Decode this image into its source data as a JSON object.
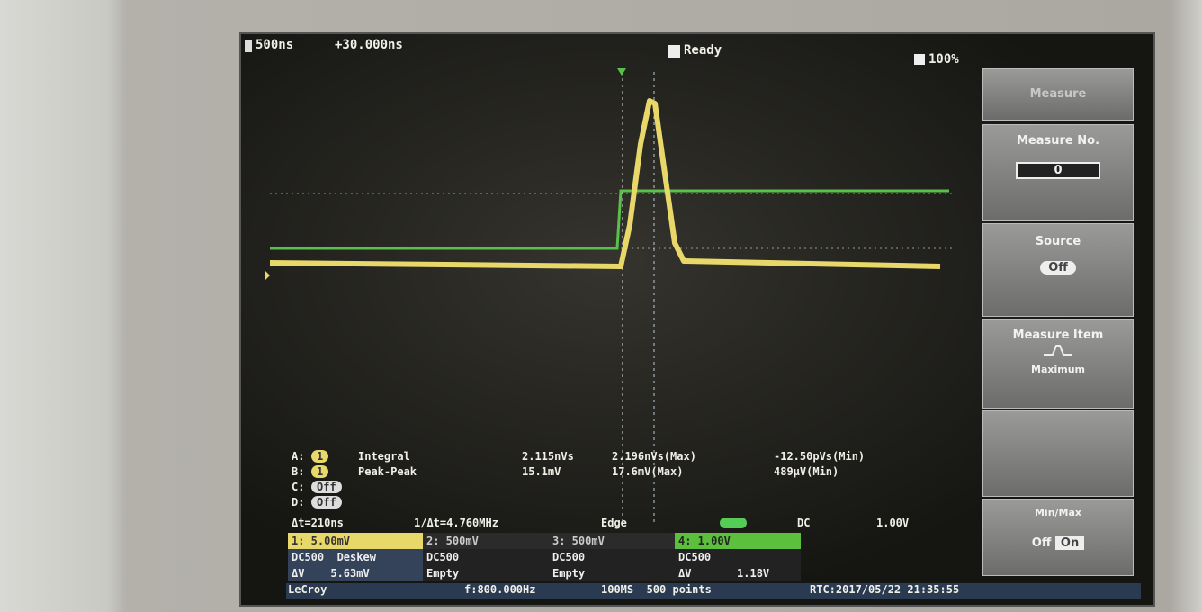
{
  "header": {
    "timebase": "500ns",
    "delay": "+30.000ns",
    "status": "Ready",
    "zoom": "100%"
  },
  "menu": {
    "title": "Measure",
    "number_label": "Measure No.",
    "number": "0",
    "source_label": "Source",
    "source": "Off",
    "item_label": "Measure Item",
    "item": "Maximum",
    "minmax_label": "Min/Max",
    "minmax_off": "Off",
    "minmax_on": "On"
  },
  "measurements": [
    {
      "slot": "A:",
      "channel": "1",
      "name": "Integral",
      "value": "2.115nVs",
      "max": "2.196nVs(Max)",
      "min": "-12.50pVs(Min)"
    },
    {
      "slot": "B:",
      "channel": "1",
      "name": "Peak-Peak",
      "value": "15.1mV",
      "max": "17.6mV(Max)",
      "min": "489μV(Min)"
    },
    {
      "slot": "C:",
      "channel": "Off"
    },
    {
      "slot": "D:",
      "channel": "Off"
    }
  ],
  "cursor": {
    "dt": "Δt=210ns",
    "freq": "1/Δt=4.760MHz",
    "trigger": "Edge",
    "coupling": "DC",
    "level": "1.00V"
  },
  "channels": {
    "rows": [
      [
        "1: 5.00mV",
        "2: 500mV",
        "3: 500mV",
        "4: 1.00V"
      ],
      [
        "DC500  Deskew",
        "DC500",
        "DC500",
        "DC500"
      ],
      [
        "ΔV    5.63mV",
        "Empty",
        "Empty",
        "ΔV       1.18V"
      ]
    ]
  },
  "status": {
    "brand": "LeCroy",
    "freq": "f:800.000Hz",
    "sampling": "100MS  500 points",
    "rtc": "RTC:2017/05/22 21:35:55"
  }
}
